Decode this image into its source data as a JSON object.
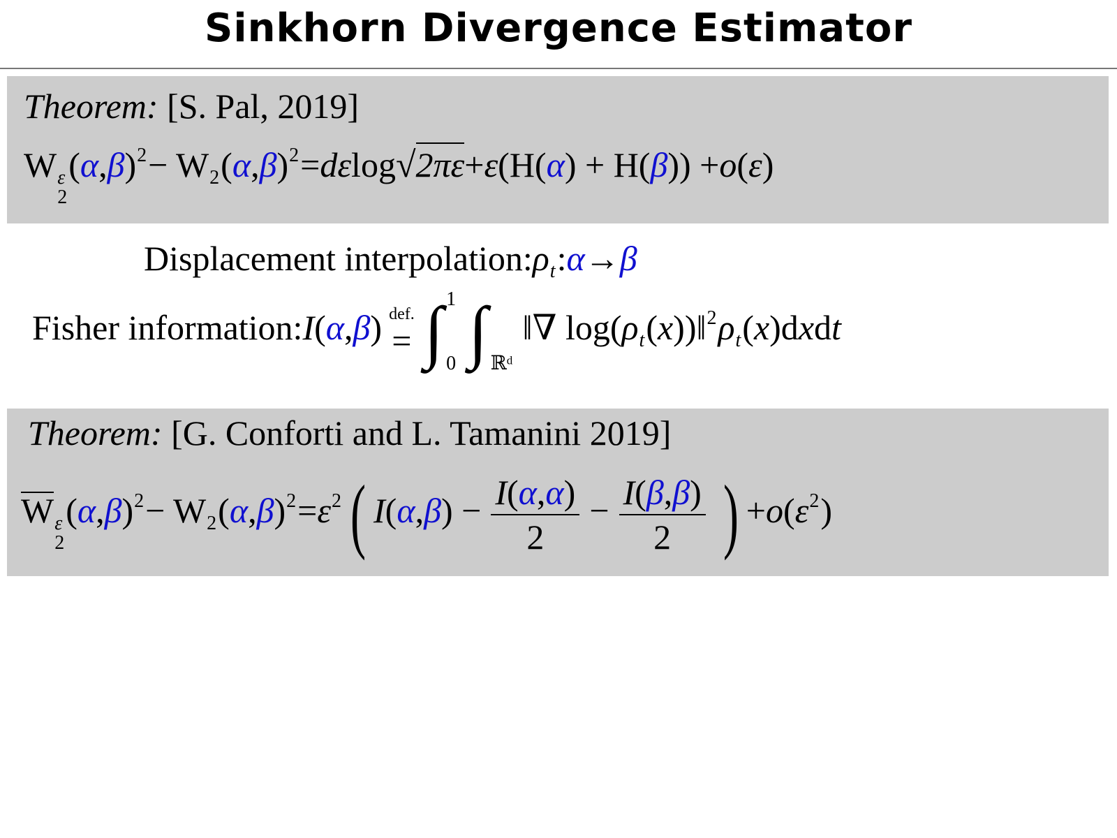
{
  "slide": {
    "title": "Sinkhorn Divergence Estimator",
    "accent_color": "#1010d0",
    "box_color": "#cccccc"
  },
  "theorem1": {
    "label": "Theorem:",
    "citation": "[S. Pal, 2019]",
    "formula": [
      {
        "t": "W",
        "c": "r",
        "sup": "ε",
        "sub": "2"
      },
      {
        "t": "(",
        "c": "r"
      },
      {
        "t": "α",
        "c": "b"
      },
      {
        "t": ", ",
        "c": "r"
      },
      {
        "t": "β",
        "c": "b"
      },
      {
        "t": ")",
        "c": "r",
        "sup": "2"
      },
      {
        "t": " − W",
        "c": "r",
        "sub": "2"
      },
      {
        "t": "(",
        "c": "r"
      },
      {
        "t": "α",
        "c": "b"
      },
      {
        "t": ", ",
        "c": "r"
      },
      {
        "t": "β",
        "c": "b"
      },
      {
        "t": ")",
        "c": "r",
        "sup": "2"
      },
      {
        "t": " = ",
        "c": "r"
      },
      {
        "t": "dε",
        "c": "i"
      },
      {
        "t": " log ",
        "c": "r"
      },
      {
        "sqrt": "2πε"
      },
      {
        "t": " + ",
        "c": "r"
      },
      {
        "t": "ε",
        "c": "i"
      },
      {
        "t": "(H(",
        "c": "r"
      },
      {
        "t": "α",
        "c": "b"
      },
      {
        "t": ") + H(",
        "c": "r"
      },
      {
        "t": "β",
        "c": "b"
      },
      {
        "t": ")) + ",
        "c": "r"
      },
      {
        "t": "o",
        "c": "i"
      },
      {
        "t": "(",
        "c": "r"
      },
      {
        "t": "ε",
        "c": "i"
      },
      {
        "t": ")",
        "c": "r"
      }
    ]
  },
  "displacement": {
    "formula": [
      {
        "t": "Displacement interpolation:  ",
        "c": "r"
      },
      {
        "t": "ρ",
        "c": "i",
        "sub": "t"
      },
      {
        "t": " : ",
        "c": "r"
      },
      {
        "t": "α",
        "c": "b"
      },
      {
        "t": " → ",
        "c": "r"
      },
      {
        "t": "β",
        "c": "b"
      }
    ]
  },
  "fisher": {
    "formula": [
      {
        "t": "Fisher information:  ",
        "c": "r"
      },
      {
        "t": "I",
        "c": "i"
      },
      {
        "t": "(",
        "c": "r"
      },
      {
        "t": "α",
        "c": "b"
      },
      {
        "t": ", ",
        "c": "r"
      },
      {
        "t": "β",
        "c": "b"
      },
      {
        "t": ")",
        "c": "r"
      },
      {
        "stack_top": "def.",
        "stack_bot": "="
      },
      {
        "int": true,
        "lo": "0",
        "hi": "1"
      },
      {
        "int": true,
        "lo": "ℝᵈ",
        "hi": ""
      },
      {
        "t": "‖∇ log(",
        "c": "r"
      },
      {
        "t": "ρ",
        "c": "i",
        "sub": "t"
      },
      {
        "t": "(",
        "c": "r"
      },
      {
        "t": "x",
        "c": "i"
      },
      {
        "t": "))‖",
        "c": "r",
        "sup": "2"
      },
      {
        "t": "ρ",
        "c": "i",
        "sub": "t"
      },
      {
        "t": "(",
        "c": "r"
      },
      {
        "t": "x",
        "c": "i"
      },
      {
        "t": ")d",
        "c": "r"
      },
      {
        "t": "x",
        "c": "i"
      },
      {
        "t": "d",
        "c": "r"
      },
      {
        "t": "t",
        "c": "i"
      }
    ]
  },
  "theorem2": {
    "label": "Theorem:",
    "citation": "[G. Conforti and L. Tamanini 2019]",
    "formula": [
      {
        "t": "W",
        "c": "r",
        "over": true,
        "sup": "ε",
        "sub": "2"
      },
      {
        "t": "(",
        "c": "r"
      },
      {
        "t": "α",
        "c": "b"
      },
      {
        "t": ", ",
        "c": "r"
      },
      {
        "t": "β",
        "c": "b"
      },
      {
        "t": ")",
        "c": "r",
        "sup": "2"
      },
      {
        "t": " − W",
        "c": "r",
        "sub": "2"
      },
      {
        "t": "(",
        "c": "r"
      },
      {
        "t": "α",
        "c": "b"
      },
      {
        "t": ", ",
        "c": "r"
      },
      {
        "t": "β",
        "c": "b"
      },
      {
        "t": ")",
        "c": "r",
        "sup": "2"
      },
      {
        "t": " = ",
        "c": "r"
      },
      {
        "t": "ε",
        "c": "i",
        "sup": "2"
      },
      {
        "big": "("
      },
      {
        "t": "I",
        "c": "i"
      },
      {
        "t": "(",
        "c": "r"
      },
      {
        "t": "α",
        "c": "b"
      },
      {
        "t": ", ",
        "c": "r"
      },
      {
        "t": "β",
        "c": "b"
      },
      {
        "t": ") −",
        "c": "r"
      },
      {
        "frac": {
          "num": [
            {
              "t": "I",
              "c": "i"
            },
            {
              "t": "(",
              "c": "r"
            },
            {
              "t": "α",
              "c": "b"
            },
            {
              "t": ", ",
              "c": "r"
            },
            {
              "t": "α",
              "c": "b"
            },
            {
              "t": ")",
              "c": "r"
            }
          ],
          "den": [
            {
              "t": "2",
              "c": "r"
            }
          ]
        }
      },
      {
        "t": "−",
        "c": "r"
      },
      {
        "frac": {
          "num": [
            {
              "t": "I",
              "c": "i"
            },
            {
              "t": "(",
              "c": "r"
            },
            {
              "t": "β",
              "c": "b"
            },
            {
              "t": ", ",
              "c": "r"
            },
            {
              "t": "β",
              "c": "b"
            },
            {
              "t": ")",
              "c": "r"
            }
          ],
          "den": [
            {
              "t": "2",
              "c": "r"
            }
          ]
        }
      },
      {
        "big": ")"
      },
      {
        "t": " + ",
        "c": "r"
      },
      {
        "t": "o",
        "c": "i"
      },
      {
        "t": "(",
        "c": "r"
      },
      {
        "t": "ε",
        "c": "i",
        "sup": "2"
      },
      {
        "t": ")",
        "c": "r"
      }
    ]
  }
}
